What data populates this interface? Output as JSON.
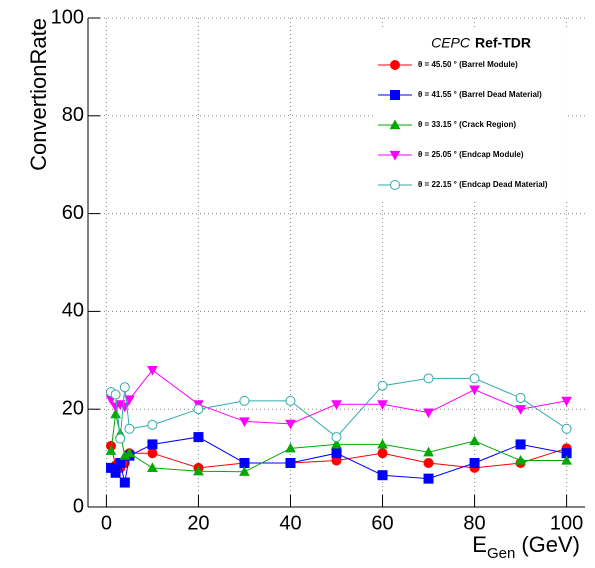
{
  "chart_data": {
    "type": "line",
    "ylabel": "ConvertionRate",
    "xlabel": "E",
    "xlabel_sub": "Gen",
    "xlabel_unit": "(GeV)",
    "legend_title": "CEPC",
    "legend_subtitle": "Ref-TDR",
    "legend_position": "upper right",
    "grid": true,
    "x": [
      1,
      2,
      3,
      4,
      5,
      10,
      20,
      30,
      40,
      50,
      60,
      70,
      80,
      90,
      100
    ],
    "xlim": [
      -4,
      104
    ],
    "xticks": [
      0,
      20,
      40,
      60,
      80,
      100
    ],
    "ylim": [
      0,
      100
    ],
    "yticks": [
      0,
      20,
      40,
      60,
      80,
      100
    ],
    "series": [
      {
        "name": "θ = 45.50 ° (Barrel Module)",
        "color": "#ff0000",
        "marker": "circle",
        "values": [
          12.5,
          8.5,
          8,
          9,
          11,
          11,
          8,
          9,
          9,
          9.5,
          11,
          9,
          8,
          9,
          12
        ]
      },
      {
        "name": "θ = 41.55 ° (Barrel Dead Material)",
        "color": "#0000ff",
        "marker": "square",
        "values": [
          8,
          7,
          9,
          5,
          10.5,
          12.8,
          14.3,
          9,
          9,
          11,
          6.5,
          5.8,
          9,
          12.8,
          11
        ]
      },
      {
        "name": "θ = 33.15 ° (Crack Region)",
        "color": "#00aa00",
        "marker": "triangle-up",
        "values": [
          11.5,
          19,
          15,
          10.5,
          11,
          8,
          7.3,
          7.2,
          12,
          12.8,
          12.8,
          11.2,
          13.5,
          9.5,
          9.5
        ]
      },
      {
        "name": "θ = 25.05 ° (Endcap Module)",
        "color": "#ff00ff",
        "marker": "triangle-down",
        "values": [
          22,
          20.5,
          21,
          20.5,
          22,
          28,
          21,
          17.5,
          17,
          21,
          21,
          19.3,
          24,
          20,
          21.7
        ]
      },
      {
        "name": "θ = 22.15 ° (Endcap Dead Material)",
        "color": "#33aaaa",
        "marker": "open-circle",
        "values": [
          23.5,
          23,
          14,
          24.5,
          16,
          16.8,
          20,
          21.7,
          21.7,
          14.3,
          24.8,
          26.3,
          26.3,
          22.3,
          16
        ]
      }
    ]
  }
}
